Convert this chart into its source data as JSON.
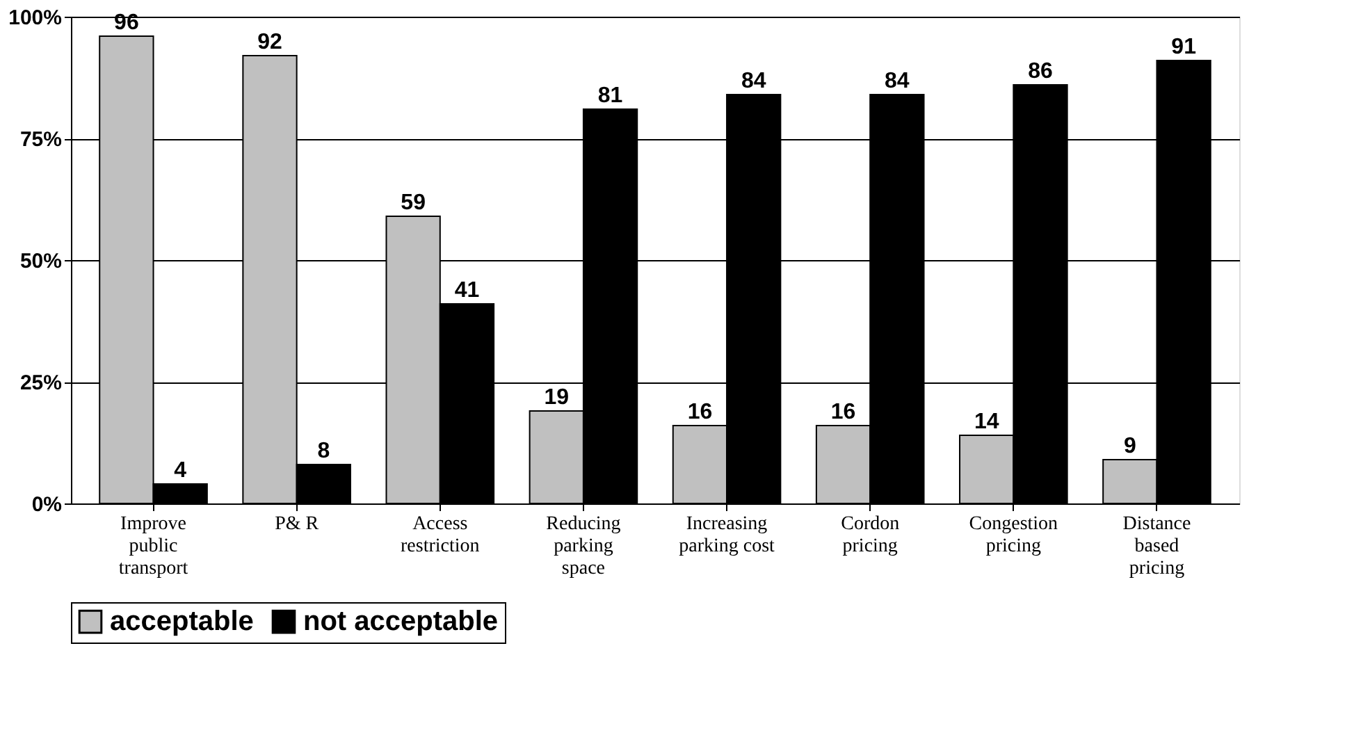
{
  "chart_data": {
    "type": "bar",
    "categories": [
      "Improve public transport",
      "P& R",
      "Access restriction",
      "Reducing parking space",
      "Increasing parking cost",
      "Cordon pricing",
      "Congestion pricing",
      "Distance based pricing"
    ],
    "series": [
      {
        "name": "acceptable",
        "color": "#c0c0c0",
        "values": [
          96,
          92,
          59,
          19,
          16,
          16,
          14,
          9
        ]
      },
      {
        "name": "not acceptable",
        "color": "#000000",
        "values": [
          4,
          8,
          41,
          81,
          84,
          84,
          86,
          91
        ]
      }
    ],
    "ylim": [
      0,
      100
    ],
    "yticks": [
      {
        "value": 0,
        "label": "0%"
      },
      {
        "value": 25,
        "label": "25%"
      },
      {
        "value": 50,
        "label": "50%"
      },
      {
        "value": 75,
        "label": "75%"
      },
      {
        "value": 100,
        "label": "100%"
      }
    ],
    "grid": "y",
    "legend": "bottom",
    "data_labels": true
  }
}
